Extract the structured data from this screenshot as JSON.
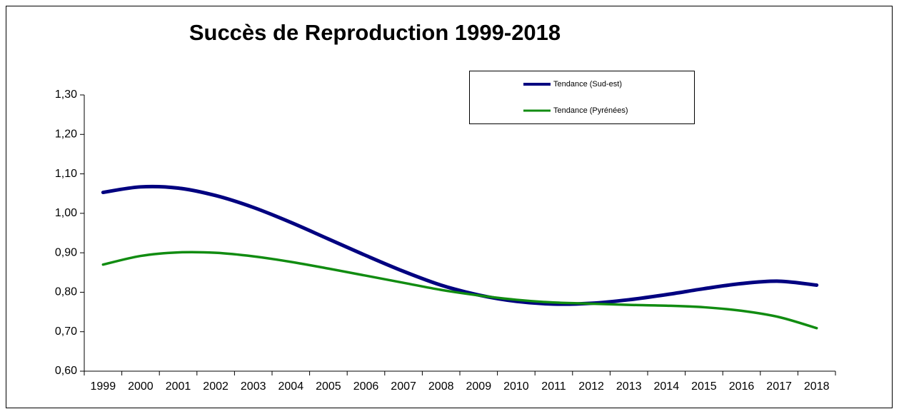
{
  "chart_data": {
    "type": "line",
    "title": "Succès de Reproduction 1999-2018",
    "categories": [
      "1999",
      "2000",
      "2001",
      "2002",
      "2003",
      "2004",
      "2005",
      "2006",
      "2007",
      "2008",
      "2009",
      "2010",
      "2011",
      "2012",
      "2013",
      "2014",
      "2015",
      "2016",
      "2017",
      "2018"
    ],
    "series": [
      {
        "name": "Tendance (Sud-est)",
        "color": "#000080",
        "values": [
          1.053,
          1.067,
          1.064,
          1.045,
          1.015,
          0.977,
          0.935,
          0.893,
          0.853,
          0.818,
          0.793,
          0.777,
          0.77,
          0.772,
          0.781,
          0.794,
          0.809,
          0.822,
          0.828,
          0.818
        ]
      },
      {
        "name": "Tendance (Pyrénées)",
        "color": "#118c11",
        "values": [
          0.87,
          0.892,
          0.901,
          0.9,
          0.891,
          0.877,
          0.86,
          0.842,
          0.824,
          0.806,
          0.792,
          0.781,
          0.774,
          0.771,
          0.768,
          0.766,
          0.762,
          0.753,
          0.737,
          0.709
        ]
      }
    ],
    "ylim": [
      0.6,
      1.3
    ],
    "yticks": [
      {
        "value": 0.6,
        "label": "0,60"
      },
      {
        "value": 0.7,
        "label": "0,70"
      },
      {
        "value": 0.8,
        "label": "0,80"
      },
      {
        "value": 0.9,
        "label": "0,90"
      },
      {
        "value": 1.0,
        "label": "1,00"
      },
      {
        "value": 1.1,
        "label": "1,10"
      },
      {
        "value": 1.2,
        "label": "1,20"
      },
      {
        "value": 1.3,
        "label": "1,30"
      }
    ],
    "grid": false,
    "legend_position": "top-right",
    "smooth": true
  }
}
